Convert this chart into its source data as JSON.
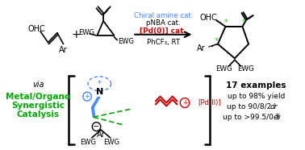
{
  "bg_color": "#ffffff",
  "black": "#000000",
  "blue": "#4488FF",
  "red": "#CC0000",
  "green": "#00AA00",
  "arrow_condition1": "Chiral amine cat.",
  "arrow_condition2": "pNBA cat.",
  "arrow_condition3": "[Pd(0)] cat.",
  "arrow_condition4": "PhCF₃, RT",
  "right_bold": "17 examples",
  "right_line1": "up to 98% yield",
  "right_line2": "up to 90/8/2 ",
  "right_line2_it": "dr",
  "right_line3": "up to >99.5/0.5 ",
  "right_line3_it": "er",
  "green_text1": "Metal/Organo",
  "green_text2": "Synergistic",
  "green_text3": "Catalysis"
}
